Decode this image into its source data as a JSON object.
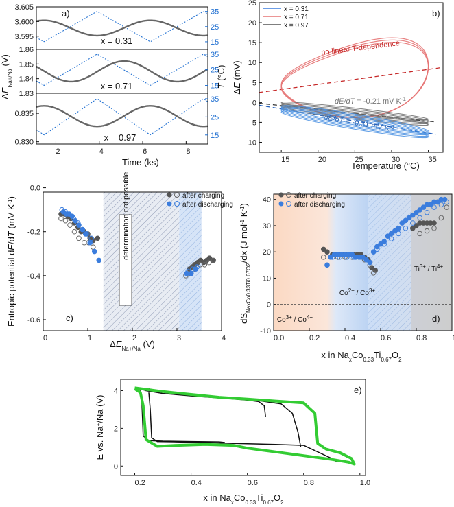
{
  "chart_data": [
    {
      "panel": "a)",
      "type": "line",
      "xlabel": "Time (ks)",
      "ylabel_left": "ΔE Na+/Na (V)",
      "ylabel_right": "T (°C)",
      "xlim": [
        1.1,
        9.0
      ],
      "xticks": [
        "2",
        "4",
        "6",
        "8"
      ],
      "temperature": {
        "period_ks": 4.9,
        "min_C": 15,
        "max_C": 35,
        "min_time_ks": 1.45,
        "yticks": [
          "15",
          "25",
          "35"
        ]
      },
      "subpanels": [
        {
          "label": "x = 0.31",
          "ylim": [
            3.5905,
            3.605
          ],
          "yticks": [
            "3.595",
            "3.600",
            "3.605"
          ],
          "voltage": {
            "offset": 3.5978,
            "amplitude": 0.0026,
            "phase_min_ks": 3.9
          }
        },
        {
          "label": "x = 0.71",
          "ylim": [
            1.83,
            1.86
          ],
          "yticks": [
            "1.83",
            "1.84",
            "1.85",
            "1.86"
          ],
          "voltage": {
            "offset": 1.845,
            "amplitude": 0.007,
            "phase_min_ks": 2.7
          }
        },
        {
          "label": "x = 0.97",
          "ylim": [
            0.8296,
            0.8385
          ],
          "yticks": [
            "0.830",
            "0.835"
          ],
          "voltage": {
            "offset": 0.8345,
            "amplitude": 0.0018,
            "phase_min_ks": 3.9
          }
        }
      ]
    },
    {
      "panel": "b)",
      "type": "line",
      "xlabel": "Temperature (°C)",
      "ylabel": "ΔE (mV)",
      "xlim": [
        12,
        37
      ],
      "ylim": [
        -12.5,
        25
      ],
      "xticks": [
        "15",
        "20",
        "25",
        "30",
        "35"
      ],
      "yticks": [
        "-10",
        "-5",
        "0",
        "5",
        "10",
        "15",
        "20",
        "25"
      ],
      "legend": [
        "x = 0.31",
        "x = 0.71",
        "x = 0.97"
      ],
      "annotations": [
        "no linear T-dependence",
        "dE/dT = -0.21 mV K-1",
        "dE/dT = -0.31 mV K-1"
      ],
      "fit_lines": [
        {
          "name": "x=0.71 fit",
          "x": [
            12,
            37
          ],
          "y": [
            2.5,
            8.8
          ]
        },
        {
          "name": "x=0.97 fit",
          "x": [
            12,
            36
          ],
          "y": [
            -0.2,
            -4.9
          ]
        },
        {
          "name": "x=0.31 fit",
          "x": [
            12,
            36
          ],
          "y": [
            -0.7,
            -8.0
          ]
        }
      ]
    },
    {
      "panel": "c)",
      "type": "scatter",
      "xlabel": "ΔE Na+/Na (V)",
      "ylabel": "Entropic potential dE/dT (mV K-1)",
      "xlim": [
        0,
        4
      ],
      "ylim": [
        -0.65,
        -0.02
      ],
      "xticks": [
        "0",
        "1",
        "2",
        "3",
        "4"
      ],
      "yticks": [
        "-0.6",
        "-0.4",
        "-0.2",
        "0.0"
      ],
      "legend": [
        "after charging",
        "after discharging"
      ],
      "shaded_text": "determination not possible",
      "series": [
        {
          "name": "after charging (filled)",
          "x": [
            0.4,
            0.48,
            0.55,
            0.62,
            0.7,
            0.78,
            0.85,
            0.92,
            1.0,
            1.05,
            1.12,
            1.22,
            3.28,
            3.34,
            3.4,
            3.47,
            3.53,
            3.6,
            3.67,
            3.73,
            3.8
          ],
          "y": [
            -0.12,
            -0.12,
            -0.13,
            -0.14,
            -0.16,
            -0.18,
            -0.2,
            -0.2,
            -0.21,
            -0.23,
            -0.24,
            -0.23,
            -0.37,
            -0.36,
            -0.35,
            -0.34,
            -0.33,
            -0.34,
            -0.33,
            -0.32,
            -0.33
          ]
        },
        {
          "name": "after charging (open)",
          "x": [
            0.4,
            0.5,
            0.6,
            0.7,
            0.8,
            0.92,
            1.02,
            1.12,
            3.2,
            3.3,
            3.4,
            3.52,
            3.62,
            3.72,
            3.82
          ],
          "y": [
            -0.14,
            -0.15,
            -0.17,
            -0.2,
            -0.23,
            -0.25,
            -0.25,
            -0.27,
            -0.4,
            -0.39,
            -0.37,
            -0.35,
            -0.35,
            -0.34,
            -0.33
          ]
        },
        {
          "name": "after discharging (filled)",
          "x": [
            0.45,
            0.52,
            0.58,
            0.65,
            0.72,
            0.8,
            0.88,
            0.95,
            1.05,
            1.15,
            1.25,
            3.22,
            3.32,
            3.42
          ],
          "y": [
            -0.11,
            -0.12,
            -0.12,
            -0.13,
            -0.15,
            -0.17,
            -0.19,
            -0.21,
            -0.25,
            -0.29,
            -0.33,
            -0.39,
            -0.39,
            -0.37
          ]
        },
        {
          "name": "after discharging (open)",
          "x": [
            0.42,
            0.5,
            0.58,
            0.68,
            0.78,
            0.88,
            0.98,
            1.08,
            3.25,
            3.35,
            3.45
          ],
          "y": [
            -0.1,
            -0.11,
            -0.12,
            -0.14,
            -0.16,
            -0.19,
            -0.21,
            -0.23,
            -0.38,
            -0.37,
            -0.36
          ]
        }
      ]
    },
    {
      "panel": "d)",
      "type": "scatter",
      "xlabel": "x in NaxCo0.33Ti0.67O2",
      "ylabel": "dS/dx (J mol-1 K-1)",
      "xlim": [
        0,
        1
      ],
      "ylim": [
        -10,
        42
      ],
      "xticks": [
        "0.0",
        "0.2",
        "0.4",
        "0.6",
        "0.8",
        "1.0"
      ],
      "yticks": [
        "-10",
        "0",
        "10",
        "20",
        "30",
        "40"
      ],
      "legend": [
        "after charging",
        "after discharging"
      ],
      "region_labels": [
        "Co3+ / Co4+",
        "Co2+ / Co3+",
        "Ti3+ / Ti4+"
      ],
      "series": [
        {
          "name": "after charging (filled)",
          "x": [
            0.28,
            0.3,
            0.33,
            0.35,
            0.37,
            0.39,
            0.41,
            0.43,
            0.45,
            0.47,
            0.49,
            0.51,
            0.53,
            0.54,
            0.55,
            0.57,
            0.78,
            0.8,
            0.82,
            0.84,
            0.86,
            0.88,
            0.9,
            0.92
          ],
          "y": [
            21,
            20,
            19,
            19,
            19,
            19,
            19,
            19,
            19,
            19,
            19,
            18,
            17,
            16,
            14,
            13,
            29,
            30,
            31,
            31,
            31,
            31,
            31,
            39
          ]
        },
        {
          "name": "after charging (open)",
          "x": [
            0.28,
            0.32,
            0.36,
            0.4,
            0.44,
            0.48,
            0.51,
            0.54,
            0.56,
            0.82,
            0.86,
            0.9,
            0.94,
            0.97
          ],
          "y": [
            18,
            18,
            18,
            18,
            18,
            18,
            17,
            15,
            12,
            27,
            28,
            29,
            33,
            37
          ]
        },
        {
          "name": "after discharging (filled)",
          "x": [
            0.3,
            0.32,
            0.34,
            0.36,
            0.38,
            0.4,
            0.42,
            0.44,
            0.46,
            0.48,
            0.5,
            0.52,
            0.54,
            0.56,
            0.58,
            0.6,
            0.62,
            0.64,
            0.66,
            0.68,
            0.7,
            0.72,
            0.74,
            0.76,
            0.78,
            0.8,
            0.82,
            0.84,
            0.86,
            0.88,
            0.9,
            0.92,
            0.94,
            0.96
          ],
          "y": [
            15,
            18,
            19,
            19,
            19,
            19,
            19,
            19,
            18,
            18,
            18,
            17,
            16,
            20,
            22,
            23,
            24,
            26,
            27,
            28,
            29,
            31,
            32,
            33,
            34,
            35,
            36,
            37,
            38,
            38,
            39,
            39,
            40,
            40
          ]
        },
        {
          "name": "after discharging (open)",
          "x": [
            0.33,
            0.37,
            0.41,
            0.45,
            0.49,
            0.52,
            0.58,
            0.62,
            0.66,
            0.7,
            0.74,
            0.78,
            0.82,
            0.86,
            0.9,
            0.94,
            0.97
          ],
          "y": [
            18,
            18,
            18,
            18,
            18,
            17,
            21,
            23,
            25,
            27,
            29,
            31,
            33,
            35,
            37,
            38,
            39
          ]
        }
      ]
    },
    {
      "panel": "e)",
      "type": "line",
      "xlabel": "x in NaxCo0.33Ti0.67O2",
      "ylabel": "E vs. Na+/Na (V)",
      "xlim": [
        0.15,
        1.02
      ],
      "ylim": [
        -0.5,
        4.6
      ],
      "xticks": [
        "0.2",
        "0.4",
        "0.6",
        "0.8",
        "1.0"
      ],
      "yticks": [
        "0",
        "2",
        "4"
      ],
      "series": [
        {
          "name": "first cycle (black)",
          "x": [
            0.665,
            0.66,
            0.64,
            0.6,
            0.52,
            0.42,
            0.3,
            0.24,
            0.21
          ],
          "y": [
            2.6,
            3.2,
            3.42,
            3.5,
            3.6,
            3.7,
            3.85,
            4.0,
            4.15
          ]
        },
        {
          "name": "first discharge (black)",
          "x": [
            0.22,
            0.225,
            0.23,
            0.25,
            0.3,
            0.4,
            0.5,
            0.52
          ],
          "y": [
            4.1,
            3.4,
            1.6,
            1.35,
            1.32,
            1.3,
            1.28,
            1.25
          ]
        },
        {
          "name": "second discharge (black)",
          "x": [
            0.25,
            0.255,
            0.26,
            0.28,
            0.35,
            0.45,
            0.55,
            0.7,
            0.8,
            0.9,
            0.92
          ],
          "y": [
            3.9,
            3.0,
            1.5,
            1.3,
            1.28,
            1.25,
            1.2,
            1.15,
            1.1,
            0.4,
            0.2
          ]
        },
        {
          "name": "second charge (black)",
          "x": [
            0.79,
            0.78,
            0.76,
            0.72,
            0.65,
            0.55,
            0.45,
            0.38,
            0.3,
            0.25
          ],
          "y": [
            1.0,
            1.8,
            2.8,
            3.3,
            3.45,
            3.6,
            3.7,
            3.8,
            3.95,
            4.1
          ]
        },
        {
          "name": "later cycles (green)",
          "x": [
            0.2,
            0.25,
            0.3,
            0.4,
            0.5,
            0.6,
            0.7,
            0.8,
            0.84,
            0.85,
            0.88,
            0.93,
            0.97,
            0.98,
            0.96,
            0.9,
            0.8,
            0.7,
            0.6,
            0.55,
            0.45,
            0.35,
            0.28,
            0.24,
            0.23,
            0.22,
            0.2
          ],
          "y": [
            4.15,
            4.05,
            3.95,
            3.8,
            3.65,
            3.55,
            3.45,
            3.35,
            2.8,
            1.2,
            0.9,
            0.7,
            0.4,
            0.1,
            0.2,
            0.35,
            0.55,
            0.75,
            0.95,
            1.1,
            1.15,
            1.1,
            1.05,
            1.4,
            3.2,
            3.9,
            4.1
          ]
        }
      ]
    }
  ]
}
